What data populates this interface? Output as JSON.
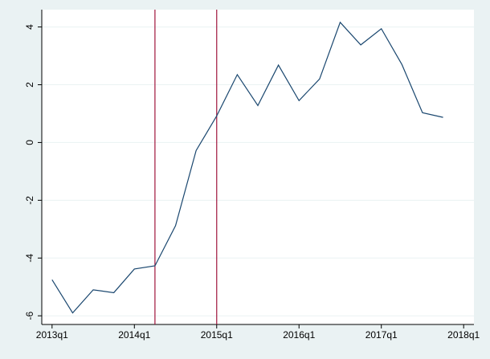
{
  "chart_data": {
    "type": "line",
    "x": [
      212,
      213,
      214,
      215,
      216,
      217,
      218,
      219,
      220,
      221,
      222,
      223,
      224,
      225,
      226,
      227,
      228,
      229,
      230,
      231
    ],
    "series": [
      {
        "color": "#1a476f",
        "values": [
          -4.75,
          -5.9,
          -5.1,
          -5.2,
          -4.38,
          -4.27,
          -2.88,
          -0.28,
          0.92,
          2.35,
          1.28,
          2.68,
          1.45,
          2.2,
          4.16,
          3.38,
          3.94,
          2.7,
          1.03,
          0.87
        ]
      }
    ],
    "xlim": [
      211.5,
      232.5
    ],
    "xticks": [
      {
        "value": 212,
        "label": "2013q1"
      },
      {
        "value": 216,
        "label": "2014q1"
      },
      {
        "value": 220,
        "label": "2015q1"
      },
      {
        "value": 224,
        "label": "2016q1"
      },
      {
        "value": 228,
        "label": "2017q1"
      },
      {
        "value": 232,
        "label": "2018q1"
      }
    ],
    "ylim": [
      -6.3,
      4.6
    ],
    "yticks": [
      -6,
      -4,
      -2,
      0,
      2,
      4
    ],
    "grid": true,
    "xlines": [
      217,
      220
    ],
    "xline_color": "#a0143c"
  }
}
